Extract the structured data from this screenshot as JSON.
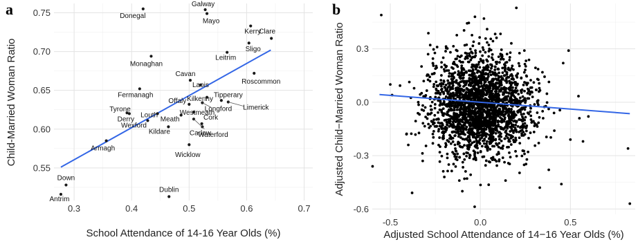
{
  "panels": [
    "a",
    "b"
  ],
  "chart_data": [
    {
      "type": "scatter",
      "panel": "a",
      "xlabel": "School Attendance of 14-16 Year Olds (%)",
      "ylabel": "Child-Married Woman Ratio",
      "xlim": [
        0.265,
        0.715
      ],
      "ylim": [
        0.508,
        0.762
      ],
      "xticks": [
        0.3,
        0.4,
        0.5,
        0.6,
        0.7
      ],
      "xtick_labels": [
        "0.3",
        "0.4",
        "0.5",
        "0.6",
        "0.7"
      ],
      "yticks": [
        0.55,
        0.6,
        0.65,
        0.7,
        0.75
      ],
      "ytick_labels": [
        "0.55",
        "0.60",
        "0.65",
        "0.70",
        "0.75"
      ],
      "grid": true,
      "point_color": "#1a1a1a",
      "fit_color": "#3366e6",
      "fit_line": {
        "x": [
          0.277,
          0.642
        ],
        "y": [
          0.551,
          0.702
        ]
      },
      "points": [
        {
          "x": 0.42,
          "y": 0.755,
          "label": "Donegal"
        },
        {
          "x": 0.528,
          "y": 0.754,
          "label": "Galway"
        },
        {
          "x": 0.531,
          "y": 0.749,
          "label": "Mayo"
        },
        {
          "x": 0.607,
          "y": 0.733,
          "label": "Kerry"
        },
        {
          "x": 0.643,
          "y": 0.717,
          "label": "Clare"
        },
        {
          "x": 0.604,
          "y": 0.711,
          "label": "Sligo"
        },
        {
          "x": 0.566,
          "y": 0.699,
          "label": "Leitrim"
        },
        {
          "x": 0.434,
          "y": 0.694,
          "label": "Monaghan"
        },
        {
          "x": 0.613,
          "y": 0.672,
          "label": "Roscommon"
        },
        {
          "x": 0.502,
          "y": 0.663,
          "label": "Cavan"
        },
        {
          "x": 0.52,
          "y": 0.657,
          "label": "Laois"
        },
        {
          "x": 0.414,
          "y": 0.652,
          "label": "Fermanagh"
        },
        {
          "x": 0.531,
          "y": 0.641,
          "label": "Kilkenny"
        },
        {
          "x": 0.556,
          "y": 0.637,
          "label": "Tipperary"
        },
        {
          "x": 0.568,
          "y": 0.635,
          "label": "Limerick"
        },
        {
          "x": 0.5,
          "y": 0.632,
          "label": "Offaly"
        },
        {
          "x": 0.523,
          "y": 0.634,
          "label": "Longford"
        },
        {
          "x": 0.392,
          "y": 0.621,
          "label": "Tyrone"
        },
        {
          "x": 0.445,
          "y": 0.62,
          "label": "Louth"
        },
        {
          "x": 0.508,
          "y": 0.622,
          "label": "Westmeath"
        },
        {
          "x": 0.396,
          "y": 0.62,
          "label": "Derry"
        },
        {
          "x": 0.486,
          "y": 0.618,
          "label": "Meath"
        },
        {
          "x": 0.428,
          "y": 0.611,
          "label": "Wexford"
        },
        {
          "x": 0.522,
          "y": 0.607,
          "label": "Cork"
        },
        {
          "x": 0.464,
          "y": 0.603,
          "label": "Kildare"
        },
        {
          "x": 0.523,
          "y": 0.603,
          "label": "Carlow"
        },
        {
          "x": 0.508,
          "y": 0.613,
          "label": "Waterford"
        },
        {
          "x": 0.356,
          "y": 0.585,
          "label": "Armagh"
        },
        {
          "x": 0.5,
          "y": 0.58,
          "label": "Wicklow"
        },
        {
          "x": 0.286,
          "y": 0.528,
          "label": "Down"
        },
        {
          "x": 0.277,
          "y": 0.516,
          "label": "Antrim"
        },
        {
          "x": 0.465,
          "y": 0.513,
          "label": "Dublin"
        }
      ]
    },
    {
      "type": "scatter",
      "panel": "b",
      "xlabel": "Adjusted School Attendance of 14−16 Year Olds (%)",
      "ylabel": "Adjusted Child−Married Woman Ratio",
      "xlim": [
        -0.6,
        0.86
      ],
      "ylim": [
        -0.63,
        0.555
      ],
      "xticks": [
        -0.5,
        0.0,
        0.5
      ],
      "xtick_labels": [
        "-0.5",
        "0.0",
        "0.5"
      ],
      "yticks": [
        -0.6,
        -0.3,
        0.0,
        0.3
      ],
      "ytick_labels": [
        "-0.6",
        "-0.3",
        "0.0",
        "0.3"
      ],
      "grid": true,
      "point_color": "#000000",
      "fit_color": "#3366e6",
      "fit_line": {
        "x": [
          -0.56,
          0.83
        ],
        "y": [
          0.043,
          -0.064
        ]
      },
      "cloud_center": [
        0.0,
        -0.02
      ],
      "cloud_sd": [
        0.14,
        0.14
      ],
      "cloud_n": 2300,
      "outliers": [
        {
          "x": -0.55,
          "y": 0.49
        },
        {
          "x": -0.5,
          "y": 0.1
        },
        {
          "x": -0.49,
          "y": 0.04
        },
        {
          "x": 0.2,
          "y": 0.53
        },
        {
          "x": 0.82,
          "y": -0.26
        },
        {
          "x": 0.83,
          "y": -0.57
        },
        {
          "x": 0.49,
          "y": 0.29
        },
        {
          "x": 0.5,
          "y": -0.21
        },
        {
          "x": 0.57,
          "y": -0.22
        },
        {
          "x": 0.6,
          "y": -0.08
        },
        {
          "x": 0.55,
          "y": -0.09
        },
        {
          "x": -0.4,
          "y": -0.24
        },
        {
          "x": -0.41,
          "y": -0.18
        },
        {
          "x": -0.29,
          "y": 0.27
        },
        {
          "x": -0.24,
          "y": 0.31
        },
        {
          "x": -0.1,
          "y": -0.5
        },
        {
          "x": 0.45,
          "y": -0.46
        },
        {
          "x": 0.33,
          "y": -0.48
        },
        {
          "x": 0.14,
          "y": -0.44
        },
        {
          "x": -0.03,
          "y": 0.48
        },
        {
          "x": 0.02,
          "y": 0.47
        },
        {
          "x": 0.46,
          "y": 0.22
        },
        {
          "x": -0.32,
          "y": -0.33
        },
        {
          "x": 0.38,
          "y": -0.38
        },
        {
          "x": -0.2,
          "y": -0.42
        }
      ]
    }
  ]
}
